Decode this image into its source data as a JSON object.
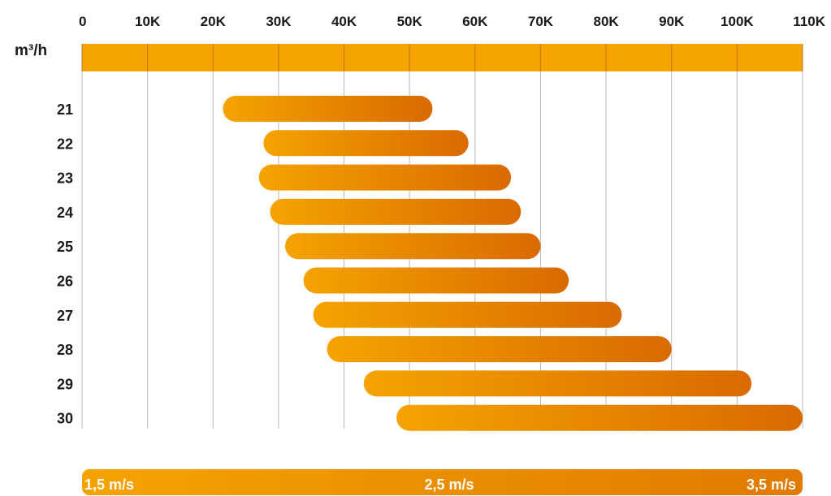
{
  "chart_data": {
    "type": "bar",
    "orientation": "horizontal-range",
    "unit_label": "m³/h",
    "x_ticks": [
      "0",
      "10K",
      "20K",
      "30K",
      "40K",
      "50K",
      "60K",
      "70K",
      "80K",
      "90K",
      "100K",
      "110K"
    ],
    "xlim": [
      0,
      110000
    ],
    "grid": true,
    "categories": [
      "21",
      "22",
      "23",
      "24",
      "25",
      "26",
      "27",
      "28",
      "29",
      "30"
    ],
    "ranges": [
      [
        21500,
        53500
      ],
      [
        27700,
        59000
      ],
      [
        27000,
        65500
      ],
      [
        28700,
        67000
      ],
      [
        31000,
        70000
      ],
      [
        33800,
        74300
      ],
      [
        35300,
        82400
      ],
      [
        37400,
        90000
      ],
      [
        43000,
        102200
      ],
      [
        48000,
        110000
      ]
    ],
    "colors": {
      "start": "#f5a300",
      "end": "#d96a00",
      "band": "#f5a300",
      "grid": "#b8b8b8"
    },
    "velocity_scale": {
      "labels": [
        "1,5 m/s",
        "2,5 m/s",
        "3,5 m/s"
      ]
    }
  }
}
